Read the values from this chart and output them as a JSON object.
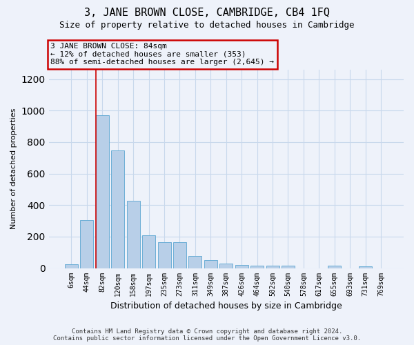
{
  "title": "3, JANE BROWN CLOSE, CAMBRIDGE, CB4 1FQ",
  "subtitle": "Size of property relative to detached houses in Cambridge",
  "xlabel": "Distribution of detached houses by size in Cambridge",
  "ylabel": "Number of detached properties",
  "footer_line1": "Contains HM Land Registry data © Crown copyright and database right 2024.",
  "footer_line2": "Contains public sector information licensed under the Open Government Licence v3.0.",
  "categories": [
    "6sqm",
    "44sqm",
    "82sqm",
    "120sqm",
    "158sqm",
    "197sqm",
    "235sqm",
    "273sqm",
    "311sqm",
    "349sqm",
    "387sqm",
    "426sqm",
    "464sqm",
    "502sqm",
    "540sqm",
    "578sqm",
    "617sqm",
    "655sqm",
    "693sqm",
    "731sqm",
    "769sqm"
  ],
  "values": [
    25,
    305,
    970,
    748,
    428,
    210,
    165,
    165,
    75,
    50,
    30,
    18,
    15,
    15,
    15,
    0,
    0,
    15,
    0,
    12,
    0
  ],
  "bar_color": "#b8cfe8",
  "bar_edge_color": "#6baed6",
  "grid_color": "#c8d8ec",
  "background_color": "#eef2fa",
  "vline_color": "#cc0000",
  "annotation_line1": "3 JANE BROWN CLOSE: 84sqm",
  "annotation_line2": "← 12% of detached houses are smaller (353)",
  "annotation_line3": "88% of semi-detached houses are larger (2,645) →",
  "annotation_box_edgecolor": "#cc0000",
  "ylim": [
    0,
    1260
  ],
  "yticks": [
    0,
    200,
    400,
    600,
    800,
    1000,
    1200
  ],
  "vline_bar_index": 2,
  "bar_width": 0.85,
  "title_fontsize": 11,
  "subtitle_fontsize": 9,
  "ylabel_fontsize": 8,
  "xlabel_fontsize": 9,
  "tick_fontsize": 7,
  "annotation_fontsize": 8,
  "footer_fontsize": 6.5
}
